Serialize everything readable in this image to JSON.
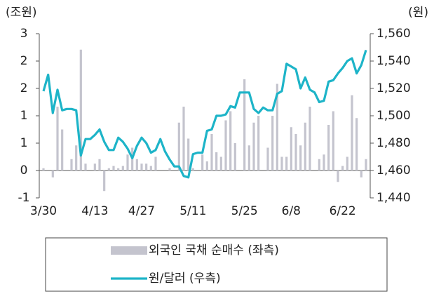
{
  "chart_data": {
    "type": "bar_line",
    "y_label": "(조원)",
    "y2_label": "(원)",
    "categories": [
      "3/30",
      null,
      null,
      null,
      null,
      null,
      null,
      null,
      null,
      null,
      null,
      "4/13",
      null,
      null,
      null,
      null,
      null,
      null,
      null,
      null,
      null,
      "4/27",
      null,
      null,
      null,
      null,
      null,
      null,
      null,
      null,
      null,
      null,
      "5/11",
      null,
      null,
      null,
      null,
      null,
      null,
      null,
      null,
      null,
      null,
      "5/25",
      null,
      null,
      null,
      null,
      null,
      null,
      null,
      null,
      null,
      "6/8",
      null,
      null,
      null,
      null,
      null,
      null,
      null,
      null,
      null,
      null,
      "6/22",
      null,
      null,
      null,
      null,
      null
    ],
    "series": [
      {
        "name": "외국인 국채 순매수 (좌측)",
        "type": "bar",
        "axis": "y",
        "color": "#c4c4ce",
        "values": [
          0.05,
          0,
          -0.15,
          1.4,
          0.9,
          0,
          0.25,
          0.55,
          2.65,
          0.15,
          0,
          0.15,
          0.25,
          -0.45,
          0.05,
          0.1,
          0.05,
          0.1,
          0.35,
          0.5,
          0.25,
          0.15,
          0.15,
          0.1,
          0.3,
          0,
          0,
          0.05,
          0,
          1.05,
          1.4,
          0.7,
          0.05,
          0,
          0.35,
          0.2,
          0.8,
          0.4,
          0.3,
          1.1,
          1.3,
          0.6,
          0,
          2.0,
          0.55,
          1.05,
          1.2,
          0,
          0.5,
          1.2,
          1.9,
          0.3,
          0.3,
          0.95,
          0.8,
          0.55,
          1.05,
          1.4,
          0,
          0.25,
          0.35,
          1.0,
          1.3,
          -0.25,
          0.1,
          0.3,
          1.65,
          1.15,
          -0.15,
          0.25
        ]
      },
      {
        "name": "원/달러 (우측)",
        "type": "line",
        "axis": "y2",
        "color": "#1db4c8",
        "values": [
          1518,
          1530,
          1502,
          1519,
          1504,
          1505,
          1505,
          1504,
          1471,
          1483,
          1483,
          1486,
          1490,
          1481,
          1475,
          1475,
          1484,
          1481,
          1476,
          1469,
          1478,
          1484,
          1480,
          1473,
          1475,
          1483,
          1474,
          1468,
          1463,
          1463,
          1456,
          1455,
          1472,
          1473,
          1473,
          1489,
          1490,
          1500,
          1500,
          1501,
          1507,
          1506,
          1517,
          1517,
          1517,
          1505,
          1502,
          1506,
          1504,
          1504,
          1516,
          1518,
          1538,
          1536,
          1534,
          1520,
          1528,
          1519,
          1517,
          1510,
          1511,
          1525,
          1526,
          1531,
          1535,
          1540,
          1542,
          1531,
          1537,
          1548
        ]
      }
    ],
    "ylim": [
      -0.6,
      3
    ],
    "yticks": [
      {
        "value": -0.6,
        "label": "-1"
      },
      {
        "value": 0,
        "label": "0"
      },
      {
        "value": 0.6,
        "label": "1"
      },
      {
        "value": 1.2,
        "label": "1"
      },
      {
        "value": 1.8,
        "label": "2"
      },
      {
        "value": 2.4,
        "label": "2"
      },
      {
        "value": 3,
        "label": "3"
      }
    ],
    "y2lim": [
      1440,
      1560
    ],
    "y2ticks": [
      {
        "value": 1440,
        "label": "1,440"
      },
      {
        "value": 1460,
        "label": "1,460"
      },
      {
        "value": 1480,
        "label": "1,480"
      },
      {
        "value": 1500,
        "label": "1,500"
      },
      {
        "value": 1520,
        "label": "1,520"
      },
      {
        "value": 1540,
        "label": "1,540"
      },
      {
        "value": 1560,
        "label": "1,560"
      }
    ],
    "grid": false
  }
}
